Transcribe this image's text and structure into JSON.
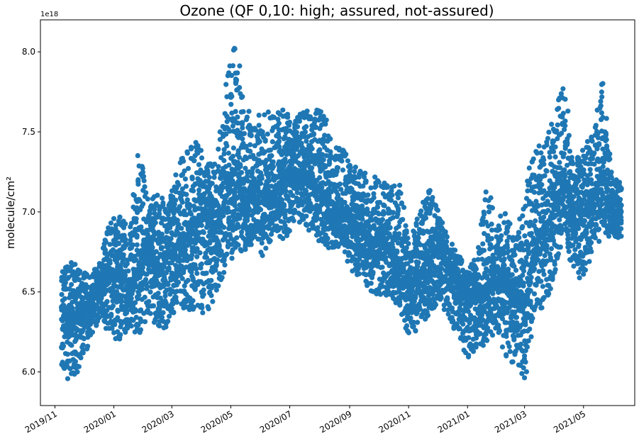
{
  "chart_data": {
    "type": "scatter",
    "title": "Ozone (QF 0,10: high; assured, not-assured)",
    "xlabel": "",
    "ylabel": "molecule/cm²",
    "y_offset_label": "1e18",
    "y_scale": 1e+18,
    "xlim": [
      "2019-10-17",
      "2021-06-23"
    ],
    "ylim": [
      5.79,
      8.2
    ],
    "x_ticks": [
      "2019-11-01",
      "2020-01-01",
      "2020-03-01",
      "2020-05-01",
      "2020-07-01",
      "2020-09-01",
      "2020-11-01",
      "2021-01-01",
      "2021-03-01",
      "2021-05-01"
    ],
    "x_tick_labels": [
      "2019/11",
      "2020/01",
      "2020/03",
      "2020/05",
      "2020/07",
      "2020/09",
      "2020/11",
      "2021/01",
      "2021/03",
      "2021/05"
    ],
    "y_ticks": [
      6.0,
      6.5,
      7.0,
      7.5,
      8.0
    ],
    "y_tick_labels": [
      "6.0",
      "6.5",
      "7.0",
      "7.5",
      "8.0"
    ],
    "grid": false,
    "marker_color": "#1f77b4",
    "series": [
      {
        "x_dates": [
          "2019-11-08",
          "2019-11-18",
          "2019-11-28",
          "2019-12-08",
          "2019-12-18",
          "2019-12-28",
          "2020-01-07",
          "2020-01-17",
          "2020-01-27",
          "2020-02-06",
          "2020-02-16",
          "2020-02-26",
          "2020-03-07",
          "2020-03-17",
          "2020-03-27",
          "2020-04-06",
          "2020-04-16",
          "2020-04-26",
          "2020-05-06",
          "2020-05-16",
          "2020-05-26",
          "2020-06-05",
          "2020-06-15",
          "2020-06-25",
          "2020-07-05",
          "2020-07-15",
          "2020-07-25",
          "2020-08-04",
          "2020-08-14",
          "2020-08-24",
          "2020-09-03",
          "2020-09-13",
          "2020-09-23",
          "2020-10-03",
          "2020-10-13",
          "2020-10-23",
          "2020-11-02",
          "2020-11-12",
          "2020-11-22",
          "2020-12-02",
          "2020-12-12",
          "2020-12-22",
          "2021-01-01",
          "2021-01-11",
          "2021-01-21",
          "2021-01-31",
          "2021-02-10",
          "2021-02-20",
          "2021-03-02",
          "2021-03-12",
          "2021-03-22",
          "2021-04-01",
          "2021-04-11",
          "2021-04-21",
          "2021-05-01",
          "2021-05-11",
          "2021-05-21",
          "2021-05-31"
        ],
        "center": [
          6.4,
          6.3,
          6.35,
          6.4,
          6.55,
          6.6,
          6.62,
          6.5,
          6.65,
          6.8,
          6.6,
          6.72,
          6.8,
          6.85,
          6.95,
          7.0,
          6.9,
          7.1,
          7.3,
          7.0,
          7.15,
          7.1,
          7.1,
          7.2,
          7.2,
          7.25,
          7.2,
          7.1,
          7.05,
          7.0,
          6.95,
          6.9,
          6.8,
          6.85,
          6.75,
          6.7,
          6.5,
          6.6,
          6.7,
          6.8,
          6.65,
          6.55,
          6.45,
          6.5,
          6.55,
          6.6,
          6.55,
          6.5,
          6.4,
          6.8,
          6.9,
          7.0,
          7.2,
          7.0,
          7.0,
          7.1,
          7.25,
          7.0
        ],
        "high": [
          6.62,
          6.7,
          6.63,
          6.6,
          6.7,
          6.95,
          6.97,
          6.9,
          7.42,
          7.05,
          7.13,
          7.02,
          7.3,
          7.38,
          7.44,
          7.3,
          7.3,
          7.8,
          8.08,
          7.66,
          7.58,
          7.64,
          7.6,
          7.65,
          7.55,
          7.65,
          7.6,
          7.69,
          7.4,
          7.4,
          7.3,
          7.25,
          7.23,
          7.2,
          7.15,
          7.18,
          6.8,
          7.0,
          7.15,
          7.0,
          6.83,
          6.75,
          6.62,
          6.75,
          7.18,
          6.95,
          7.01,
          6.8,
          7.19,
          7.4,
          7.43,
          7.6,
          7.85,
          7.3,
          7.4,
          7.5,
          7.84,
          7.2
        ],
        "low": [
          6.03,
          5.91,
          6.06,
          6.2,
          6.35,
          6.22,
          6.2,
          6.28,
          6.23,
          6.37,
          6.27,
          6.28,
          6.43,
          6.38,
          6.4,
          6.35,
          6.5,
          6.65,
          6.75,
          6.76,
          6.82,
          6.7,
          6.9,
          6.81,
          6.93,
          6.94,
          6.85,
          6.8,
          6.76,
          6.8,
          6.62,
          6.6,
          6.5,
          6.48,
          6.48,
          6.4,
          6.19,
          6.3,
          6.35,
          6.45,
          6.35,
          6.22,
          6.08,
          6.16,
          6.17,
          6.27,
          6.08,
          6.05,
          5.95,
          6.4,
          6.4,
          6.6,
          6.9,
          6.57,
          6.6,
          6.75,
          6.86,
          6.84
        ]
      }
    ]
  }
}
